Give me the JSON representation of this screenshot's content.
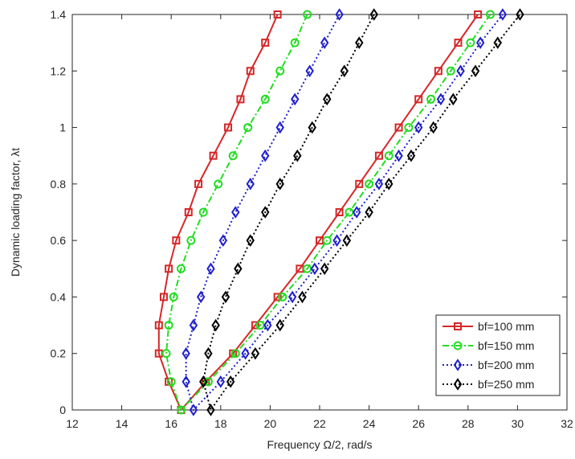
{
  "chart_data": {
    "type": "line",
    "xlabel": "Frequency Ω/2, rad/s",
    "ylabel": "Dynamic loading factor, λt",
    "xlim": [
      12,
      32
    ],
    "xticks": [
      12,
      14,
      16,
      18,
      20,
      22,
      24,
      26,
      28,
      30,
      32
    ],
    "ylim": [
      0,
      1.4
    ],
    "yticks": [
      0,
      0.2,
      0.4,
      0.6,
      0.8,
      1,
      1.2,
      1.4
    ],
    "legend": "lower right",
    "series": [
      {
        "name": "bf=100 mm",
        "color": "#d62728",
        "marker": "square",
        "linestyle": "solid",
        "x": [
          20.3,
          19.8,
          19.2,
          18.8,
          18.3,
          17.7,
          17.1,
          16.7,
          16.2,
          15.9,
          15.7,
          15.5,
          15.5,
          15.9,
          16.4,
          17.4,
          18.5,
          19.4,
          20.3,
          21.2,
          22.0,
          22.8,
          23.6,
          24.4,
          25.2,
          26.0,
          26.8,
          27.6,
          28.4
        ],
        "values": [
          1.4,
          1.3,
          1.2,
          1.1,
          1,
          0.9,
          0.8,
          0.7,
          0.6,
          0.5,
          0.4,
          0.3,
          0.2,
          0.1,
          0,
          0.1,
          0.2,
          0.3,
          0.4,
          0.5,
          0.6,
          0.7,
          0.8,
          0.9,
          1,
          1.1,
          1.2,
          1.3,
          1.4
        ]
      },
      {
        "name": "bf=150 mm",
        "color": "#22dd22",
        "marker": "circle",
        "linestyle": "dashdot",
        "x": [
          21.5,
          21.0,
          20.4,
          19.8,
          19.1,
          18.5,
          17.9,
          17.3,
          16.8,
          16.4,
          16.1,
          15.9,
          15.8,
          16.0,
          16.4,
          17.5,
          18.6,
          19.6,
          20.5,
          21.5,
          22.3,
          23.2,
          24.0,
          24.8,
          25.6,
          26.5,
          27.3,
          28.1,
          28.9
        ],
        "values": [
          1.4,
          1.3,
          1.2,
          1.1,
          1,
          0.9,
          0.8,
          0.7,
          0.6,
          0.5,
          0.4,
          0.3,
          0.2,
          0.1,
          0,
          0.1,
          0.2,
          0.3,
          0.4,
          0.5,
          0.6,
          0.7,
          0.8,
          0.9,
          1,
          1.1,
          1.2,
          1.3,
          1.4
        ]
      },
      {
        "name": "bf=200 mm",
        "color": "#1f1fcc",
        "marker": "diamond",
        "linestyle": "dotted",
        "x": [
          22.8,
          22.2,
          21.6,
          21.0,
          20.4,
          19.8,
          19.2,
          18.6,
          18.1,
          17.6,
          17.2,
          16.9,
          16.6,
          16.6,
          16.9,
          18.0,
          19.0,
          19.9,
          20.9,
          21.8,
          22.7,
          23.5,
          24.4,
          25.2,
          26.0,
          26.9,
          27.7,
          28.5,
          29.4
        ],
        "values": [
          1.4,
          1.3,
          1.2,
          1.1,
          1,
          0.9,
          0.8,
          0.7,
          0.6,
          0.5,
          0.4,
          0.3,
          0.2,
          0.1,
          0,
          0.1,
          0.2,
          0.3,
          0.4,
          0.5,
          0.6,
          0.7,
          0.8,
          0.9,
          1,
          1.1,
          1.2,
          1.3,
          1.4
        ]
      },
      {
        "name": "bf=250 mm",
        "color": "#000000",
        "marker": "diamond",
        "linestyle": "dotted",
        "x": [
          24.2,
          23.6,
          23.0,
          22.3,
          21.7,
          21.1,
          20.4,
          19.8,
          19.2,
          18.7,
          18.2,
          17.8,
          17.5,
          17.3,
          17.6,
          18.4,
          19.4,
          20.4,
          21.3,
          22.2,
          23.1,
          24.0,
          24.8,
          25.7,
          26.6,
          27.4,
          28.3,
          29.2,
          30.1
        ],
        "values": [
          1.4,
          1.3,
          1.2,
          1.1,
          1,
          0.9,
          0.8,
          0.7,
          0.6,
          0.5,
          0.4,
          0.3,
          0.2,
          0.1,
          0,
          0.1,
          0.2,
          0.3,
          0.4,
          0.5,
          0.6,
          0.7,
          0.8,
          0.9,
          1,
          1.1,
          1.2,
          1.3,
          1.4
        ]
      }
    ]
  }
}
